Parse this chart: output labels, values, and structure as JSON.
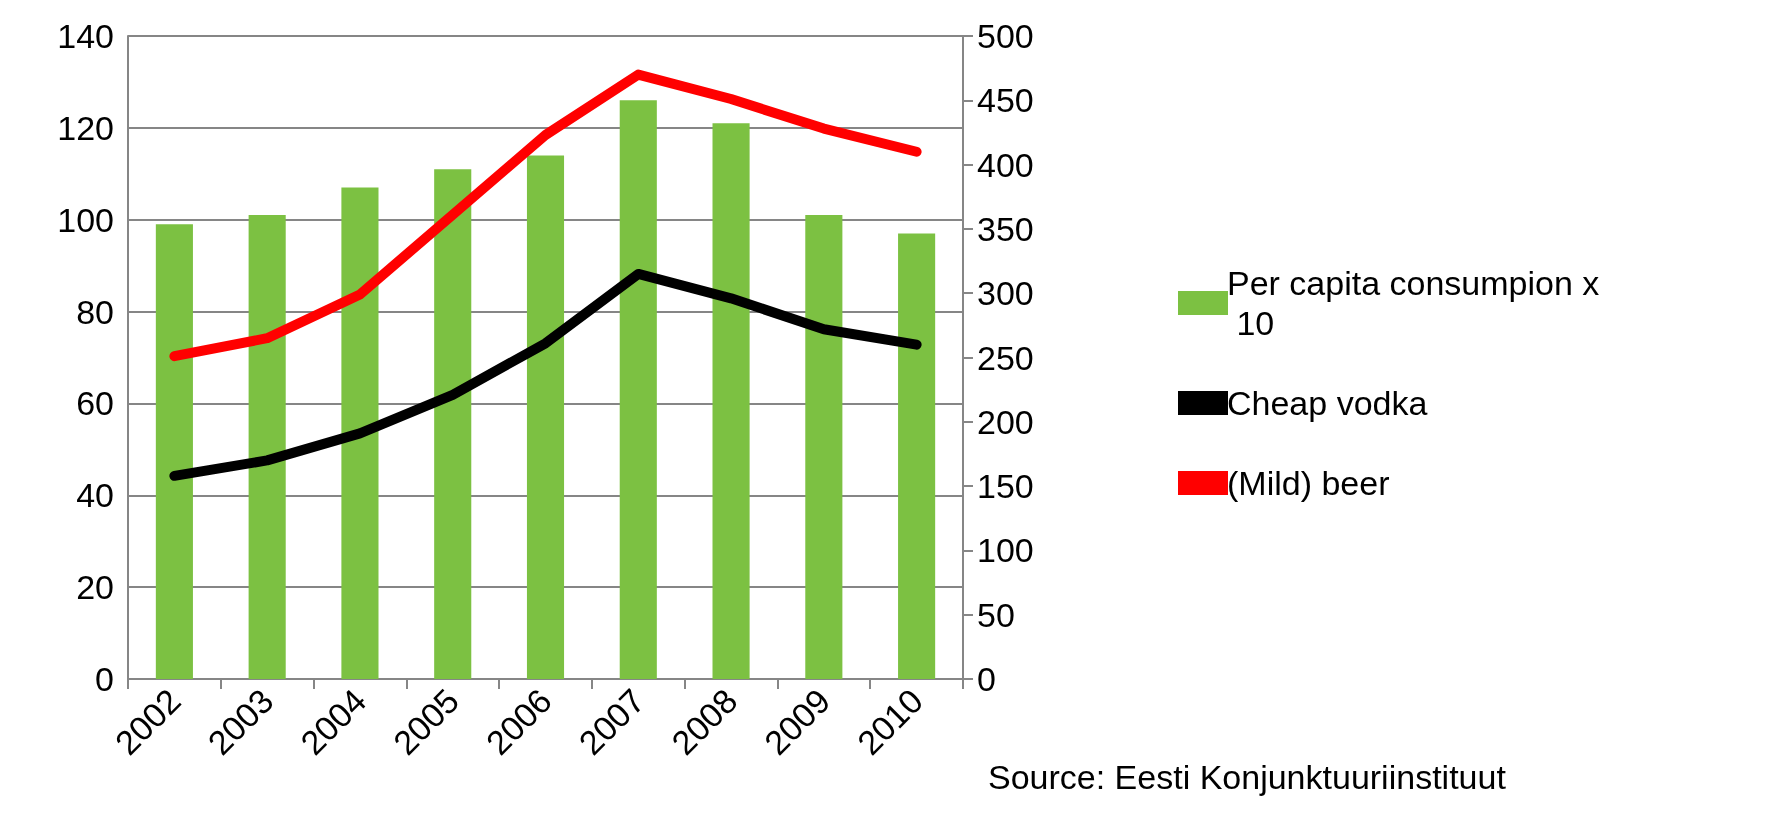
{
  "chart_data": {
    "type": "bar",
    "categories": [
      "2002",
      "2003",
      "2004",
      "2005",
      "2006",
      "2007",
      "2008",
      "2009",
      "2010"
    ],
    "series": [
      {
        "name": "Per capita consumpion x 10",
        "color": "#7cc142",
        "values": [
          99,
          101,
          107,
          111,
          114,
          126,
          121,
          101,
          97
        ]
      },
      {
        "name": "Cheap vodka",
        "type": "line",
        "axis": "y2",
        "color": "#000000",
        "values": [
          158,
          170,
          191,
          221,
          261,
          315,
          296,
          272,
          260
        ]
      },
      {
        "name": "(Mild) beer",
        "type": "line",
        "axis": "y2",
        "color": "#ff0000",
        "values": [
          251,
          265,
          299,
          361,
          423,
          470,
          451,
          428,
          410
        ]
      }
    ],
    "ylim": [
      0,
      140
    ],
    "yticks": [
      0,
      20,
      40,
      60,
      80,
      100,
      120,
      140
    ],
    "y2lim": [
      0,
      500
    ],
    "y2ticks": [
      0,
      50,
      100,
      150,
      200,
      250,
      300,
      350,
      400,
      450,
      500
    ],
    "grid": "y",
    "legend": "right",
    "line_style": "solid",
    "annotations": [
      "Source: Eesti Konjunktuuriinstituut"
    ]
  }
}
